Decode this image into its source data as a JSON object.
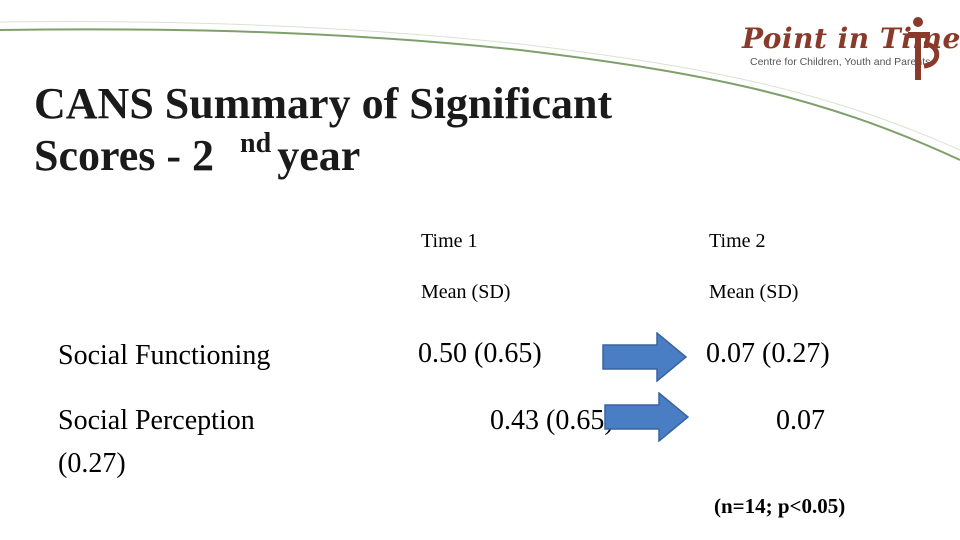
{
  "slide": {
    "title_line1": "CANS Summary of Significant",
    "title_line2_pre": "Scores - 2",
    "title_sup": "nd",
    "title_line2_post": "year"
  },
  "logo": {
    "name": "Point in Time",
    "tagline": "Centre for Children, Youth and Parents"
  },
  "table": {
    "headers": [
      {
        "time": "Time 1",
        "stat": "Mean (SD)"
      },
      {
        "time": "Time 2",
        "stat": "Mean (SD)"
      }
    ],
    "rows": [
      {
        "label": "Social Functioning",
        "time1": "0.50 (0.65)",
        "time2": "0.07 (0.27)"
      },
      {
        "label": "Social Perception",
        "label_cont": "(0.27)",
        "time1": "0.43 (0.65)",
        "time2": "0.07"
      }
    ]
  },
  "note": "(n=14; p<0.05)",
  "colors": {
    "accent_green": "#7fa06a",
    "arrow_blue": "#4a7ec4",
    "logo_brown": "#8a3a2a"
  }
}
